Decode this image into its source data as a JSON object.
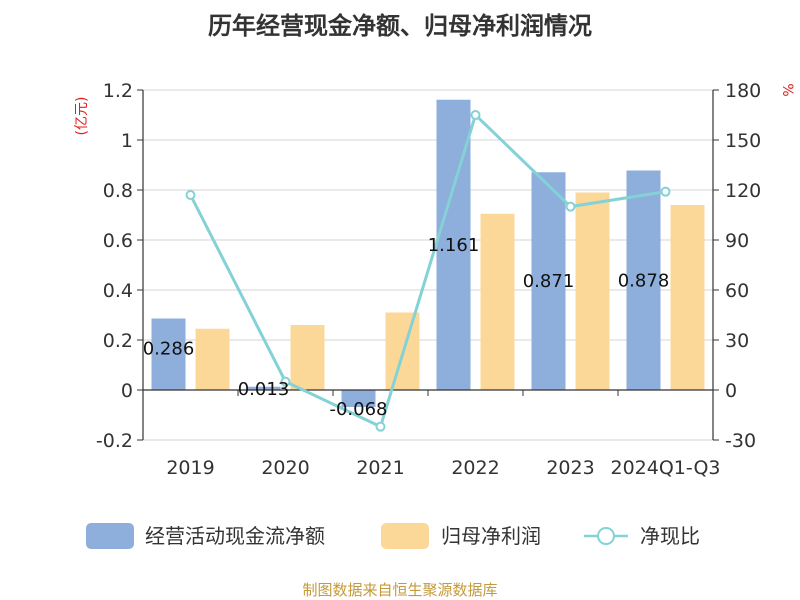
{
  "chart_data": {
    "type": "bar",
    "title": "历年经营现金净额、归母净利润情况",
    "categories": [
      "2019",
      "2020",
      "2021",
      "2022",
      "2023",
      "2024Q1-Q3"
    ],
    "series": [
      {
        "name": "经营活动现金流净额",
        "type": "bar",
        "axis": "left",
        "color": "#8eaedc",
        "values": [
          0.286,
          0.013,
          -0.068,
          1.161,
          0.871,
          0.878
        ],
        "labels": [
          "0.286",
          "0.013",
          "-0.068",
          "1.161",
          "0.871",
          "0.878"
        ]
      },
      {
        "name": "归母净利润",
        "type": "bar",
        "axis": "left",
        "color": "#fcd898",
        "values": [
          0.245,
          0.26,
          0.31,
          0.705,
          0.79,
          0.74
        ]
      },
      {
        "name": "净现比",
        "type": "line",
        "axis": "right",
        "color": "#84d1d6",
        "values": [
          117,
          5,
          -22,
          165,
          110,
          119
        ]
      }
    ],
    "left_axis": {
      "unit": "(亿元)",
      "ylim": [
        -0.2,
        1.2
      ],
      "ticks": [
        -0.2,
        0,
        0.2,
        0.4,
        0.6,
        0.8,
        1,
        1.2
      ],
      "tick_labels": [
        "-0.2",
        "0",
        "0.2",
        "0.4",
        "0.6",
        "0.8",
        "1",
        "1.2"
      ]
    },
    "right_axis": {
      "unit": "%",
      "ylim": [
        -30,
        180
      ],
      "ticks": [
        -30,
        0,
        30,
        60,
        90,
        120,
        150,
        180
      ],
      "tick_labels": [
        "-30",
        "0",
        "30",
        "60",
        "90",
        "120",
        "150",
        "180"
      ]
    },
    "grid": true,
    "legend_position": "bottom"
  },
  "source": "制图数据来自恒生聚源数据库"
}
